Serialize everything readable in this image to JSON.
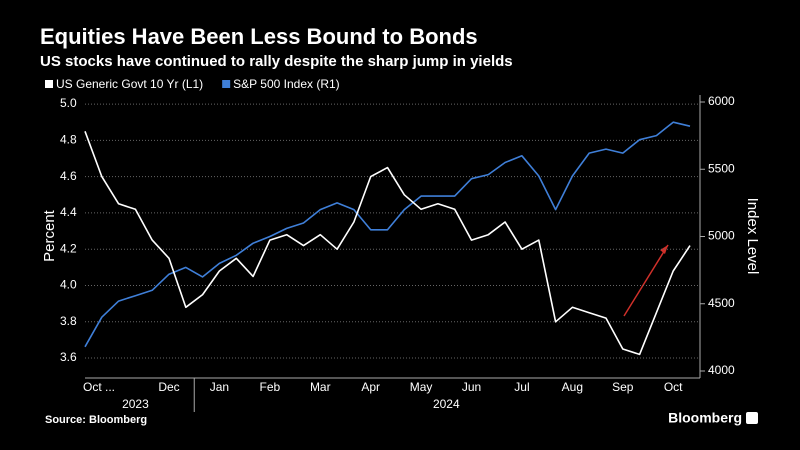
{
  "chart_data": {
    "type": "line",
    "title": "Equities Have Been Less Bound to Bonds",
    "subtitle": "US stocks have continued to rally despite the sharp jump in yields",
    "ylabel": "Percent",
    "y2label": "Index Level",
    "source": "Source: Bloomberg",
    "brand": "Bloomberg",
    "x": [
      "2023-10",
      "2023-11",
      "2023-11",
      "2023-11",
      "2023-12",
      "2023-12",
      "2023-12",
      "2024-01",
      "2024-01",
      "2024-01",
      "2024-02",
      "2024-02",
      "2024-02",
      "2024-03",
      "2024-03",
      "2024-03",
      "2024-04",
      "2024-04",
      "2024-04",
      "2024-05",
      "2024-05",
      "2024-05",
      "2024-06",
      "2024-06",
      "2024-06",
      "2024-07",
      "2024-07",
      "2024-07",
      "2024-08",
      "2024-08",
      "2024-08",
      "2024-09",
      "2024-09",
      "2024-09",
      "2024-10",
      "2024-10",
      "2024-10"
    ],
    "xtick_labels": [
      {
        "value": "2023-10",
        "label": "Oct ..."
      },
      {
        "value": "2023-12",
        "label": "Dec"
      },
      {
        "value": "2024-01",
        "label": "Jan"
      },
      {
        "value": "2024-02",
        "label": "Feb"
      },
      {
        "value": "2024-03",
        "label": "Mar"
      },
      {
        "value": "2024-04",
        "label": "Apr"
      },
      {
        "value": "2024-05",
        "label": "May"
      },
      {
        "value": "2024-06",
        "label": "Jun"
      },
      {
        "value": "2024-07",
        "label": "Jul"
      },
      {
        "value": "2024-08",
        "label": "Aug"
      },
      {
        "value": "2024-09",
        "label": "Sep"
      },
      {
        "value": "2024-10",
        "label": "Oct"
      }
    ],
    "year_labels": [
      "2023",
      "2024"
    ],
    "series": [
      {
        "name": "US Generic Govt 10 Yr  (L1)",
        "color": "#ffffff",
        "axis": "y",
        "values": [
          4.85,
          4.6,
          4.45,
          4.42,
          4.25,
          4.15,
          3.88,
          3.95,
          4.08,
          4.15,
          4.05,
          4.25,
          4.28,
          4.22,
          4.28,
          4.2,
          4.35,
          4.6,
          4.65,
          4.5,
          4.42,
          4.45,
          4.42,
          4.25,
          4.28,
          4.35,
          4.2,
          4.25,
          3.8,
          3.88,
          3.85,
          3.82,
          3.65,
          3.62,
          3.85,
          4.08,
          4.22
        ]
      },
      {
        "name": "S&P 500 Index (R1)",
        "color": "#3f7fd8",
        "axis": "y2",
        "values": [
          4180,
          4400,
          4520,
          4560,
          4600,
          4720,
          4770,
          4700,
          4800,
          4860,
          4950,
          5000,
          5060,
          5100,
          5200,
          5250,
          5200,
          5050,
          5050,
          5200,
          5300,
          5300,
          5300,
          5430,
          5460,
          5550,
          5600,
          5450,
          5200,
          5450,
          5620,
          5650,
          5620,
          5720,
          5750,
          5850,
          5820
        ]
      }
    ],
    "ylim": [
      3.49,
      5.05
    ],
    "yticks": [
      3.6,
      3.8,
      {
        "value": 4,
        "label": "4.0"
      },
      4.2,
      4.4,
      4.6,
      4.8,
      {
        "value": 5,
        "label": "5.0"
      }
    ],
    "y2lim": [
      3948,
      6052
    ],
    "y2ticks": [
      4000,
      4500,
      5000,
      5500,
      6000
    ],
    "grid": true
  }
}
